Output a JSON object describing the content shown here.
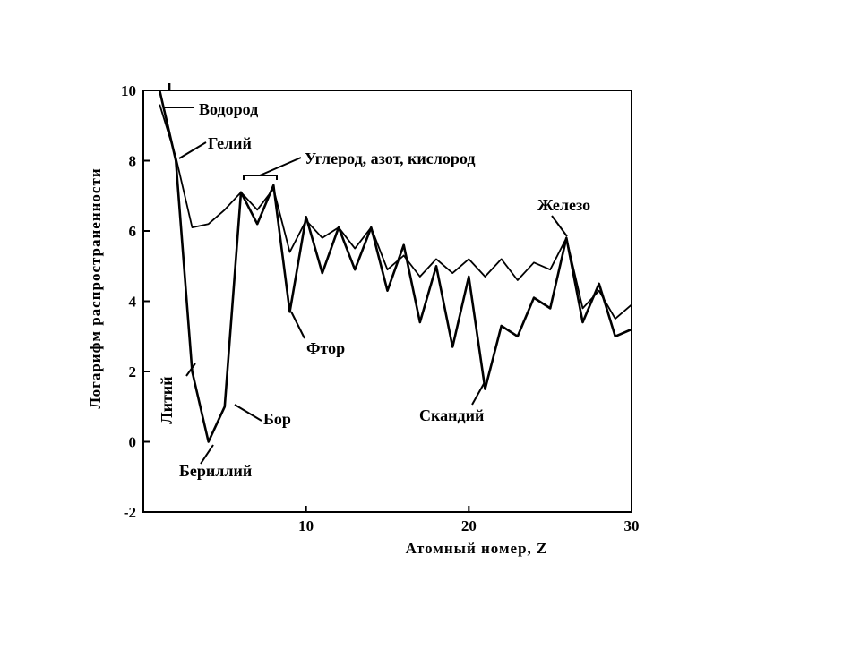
{
  "chart_data": {
    "type": "line",
    "title": "",
    "xlabel": "Атомный номер, Z",
    "ylabel": "Логарифм распространенности",
    "xlim": [
      0,
      30
    ],
    "ylim": [
      -2,
      10
    ],
    "x_ticks": [
      10,
      20,
      30
    ],
    "y_ticks": [
      -2,
      0,
      2,
      4,
      6,
      8,
      10
    ],
    "grid": false,
    "series": [
      {
        "x": [
          1,
          2,
          3,
          4,
          5,
          6,
          7,
          8,
          9,
          10,
          11,
          12,
          13,
          14,
          15,
          16,
          17,
          18,
          19,
          20,
          21,
          22,
          23,
          24,
          25,
          26,
          27,
          28,
          29,
          30
        ],
        "values": [
          10,
          8.0,
          2.0,
          0.0,
          1.0,
          7.1,
          6.2,
          7.3,
          3.7,
          6.4,
          4.8,
          6.1,
          4.9,
          6.1,
          4.3,
          5.6,
          3.4,
          5.0,
          2.7,
          4.7,
          1.5,
          3.3,
          3.0,
          4.1,
          3.8,
          5.8,
          3.4,
          4.5,
          3.0,
          3.2
        ]
      },
      {
        "x": [
          1,
          2,
          3,
          4,
          5,
          6,
          7,
          8,
          9,
          10,
          11,
          12,
          13,
          14,
          15,
          16,
          17,
          18,
          19,
          20,
          21,
          22,
          23,
          24,
          25,
          26,
          27,
          28,
          29,
          30
        ],
        "values": [
          9.6,
          8.1,
          6.1,
          6.2,
          6.6,
          7.1,
          6.6,
          7.2,
          5.4,
          6.3,
          5.8,
          6.1,
          5.5,
          6.1,
          4.9,
          5.3,
          4.7,
          5.2,
          4.8,
          5.2,
          4.7,
          5.2,
          4.6,
          5.1,
          4.9,
          5.8,
          3.8,
          4.3,
          3.5,
          3.9
        ]
      }
    ],
    "annotations": {
      "hydrogen": "Водород",
      "helium": "Гелий",
      "cno": "Углерод, азот, кислород",
      "iron": "Железо",
      "lithium": "Литий",
      "boron": "Бор",
      "beryllium": "Бериллий",
      "fluorine": "Фтор",
      "scandium": "Скандий"
    }
  }
}
